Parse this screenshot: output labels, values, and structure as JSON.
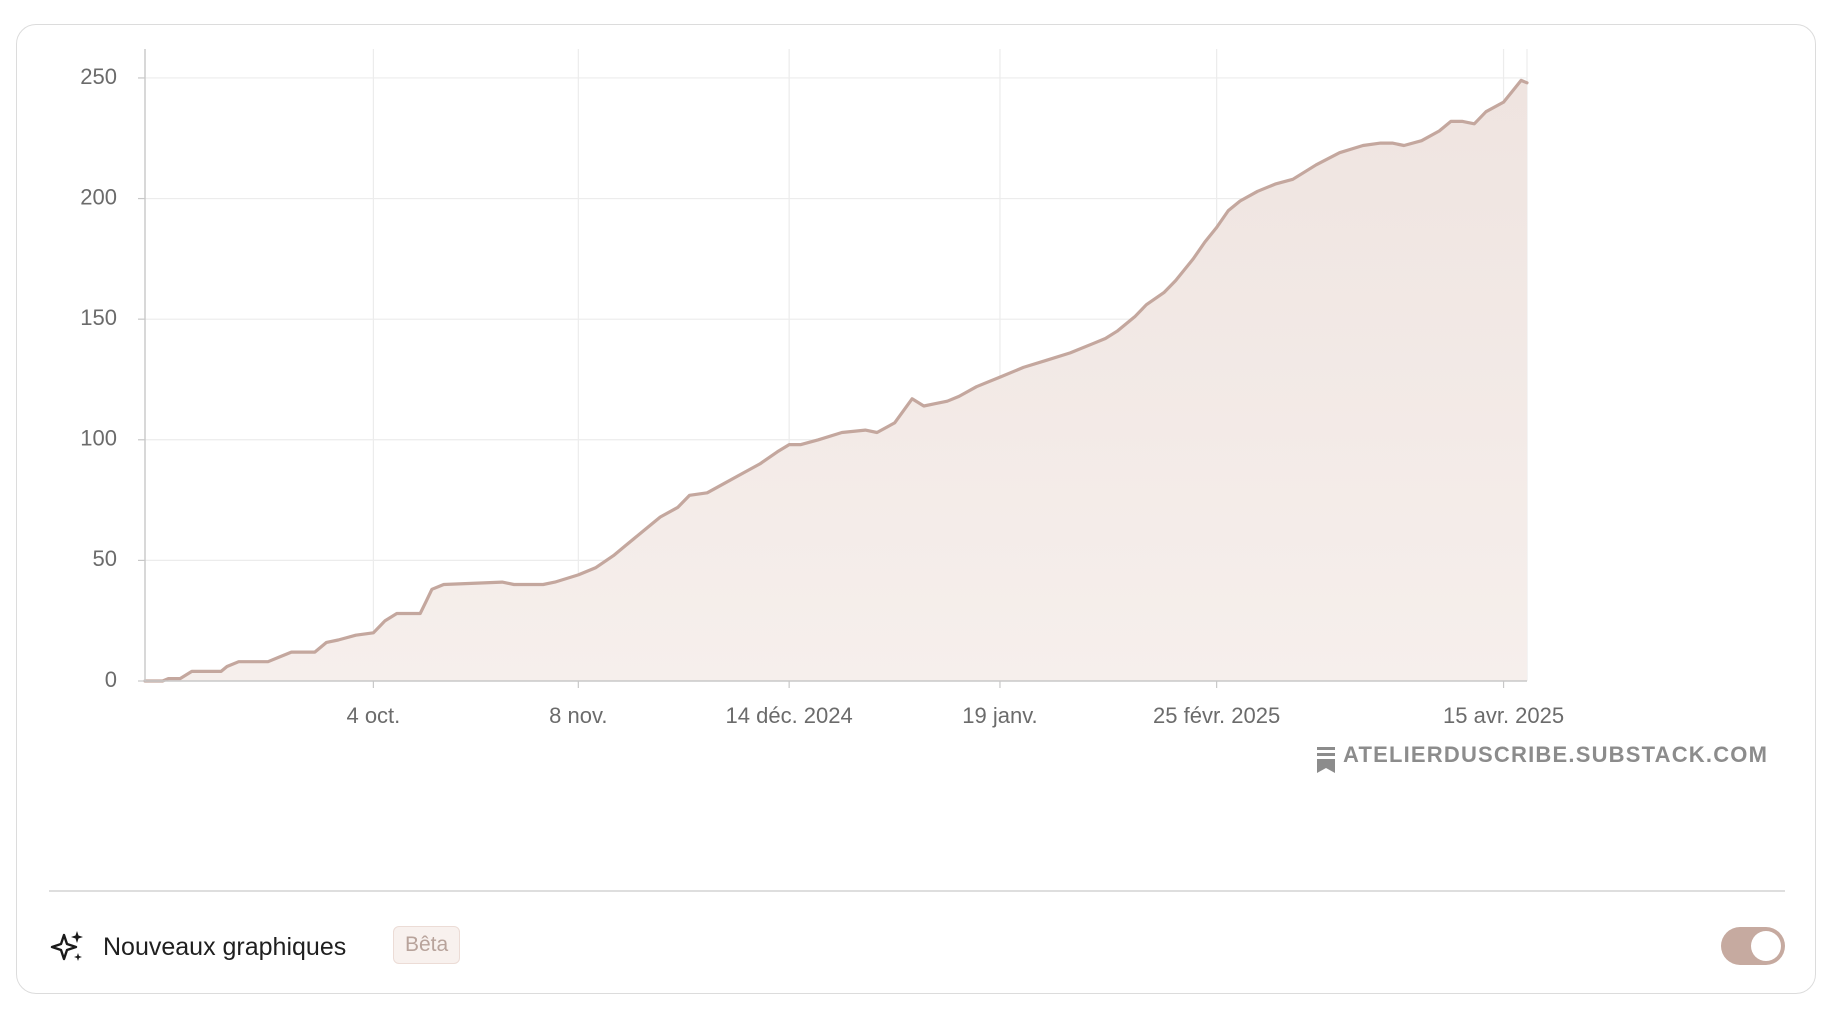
{
  "chart_data": {
    "type": "area",
    "title": "",
    "xlabel": "",
    "ylabel": "",
    "x_axis": {
      "start": "2024-08-26",
      "end": "2025-04-19",
      "ticks": [
        {
          "date": "2024-10-04",
          "label": "4 oct."
        },
        {
          "date": "2024-11-08",
          "label": "8 nov."
        },
        {
          "date": "2024-12-14",
          "label": "14 déc. 2024"
        },
        {
          "date": "2025-01-19",
          "label": "19 janv."
        },
        {
          "date": "2025-02-25",
          "label": "25 févr. 2025"
        },
        {
          "date": "2025-04-15",
          "label": "15 avr. 2025"
        }
      ]
    },
    "y_axis": {
      "min": 0,
      "max": 262,
      "ticks": [
        0,
        50,
        100,
        150,
        200,
        250
      ]
    },
    "grid": true,
    "line_color": "#c4a79e",
    "fill_color": "#f1e7e3",
    "points": [
      [
        "2024-08-26",
        0
      ],
      [
        "2024-08-29",
        0
      ],
      [
        "2024-08-30",
        1
      ],
      [
        "2024-09-01",
        1
      ],
      [
        "2024-09-03",
        4
      ],
      [
        "2024-09-06",
        4
      ],
      [
        "2024-09-08",
        4
      ],
      [
        "2024-09-09",
        6
      ],
      [
        "2024-09-11",
        8
      ],
      [
        "2024-09-14",
        8
      ],
      [
        "2024-09-16",
        8
      ],
      [
        "2024-09-18",
        10
      ],
      [
        "2024-09-20",
        12
      ],
      [
        "2024-09-24",
        12
      ],
      [
        "2024-09-26",
        16
      ],
      [
        "2024-09-28",
        17
      ],
      [
        "2024-10-01",
        19
      ],
      [
        "2024-10-04",
        20
      ],
      [
        "2024-10-06",
        25
      ],
      [
        "2024-10-08",
        28
      ],
      [
        "2024-10-12",
        28
      ],
      [
        "2024-10-13",
        33
      ],
      [
        "2024-10-14",
        38
      ],
      [
        "2024-10-16",
        40
      ],
      [
        "2024-10-26",
        41
      ],
      [
        "2024-10-28",
        40
      ],
      [
        "2024-11-02",
        40
      ],
      [
        "2024-11-04",
        41
      ],
      [
        "2024-11-08",
        44
      ],
      [
        "2024-11-11",
        47
      ],
      [
        "2024-11-14",
        52
      ],
      [
        "2024-11-16",
        56
      ],
      [
        "2024-11-19",
        62
      ],
      [
        "2024-11-22",
        68
      ],
      [
        "2024-11-25",
        72
      ],
      [
        "2024-11-27",
        77
      ],
      [
        "2024-11-30",
        78
      ],
      [
        "2024-12-03",
        82
      ],
      [
        "2024-12-06",
        86
      ],
      [
        "2024-12-09",
        90
      ],
      [
        "2024-12-12",
        95
      ],
      [
        "2024-12-14",
        98
      ],
      [
        "2024-12-16",
        98
      ],
      [
        "2024-12-19",
        100
      ],
      [
        "2024-12-23",
        103
      ],
      [
        "2024-12-27",
        104
      ],
      [
        "2024-12-29",
        103
      ],
      [
        "2025-01-01",
        107
      ],
      [
        "2025-01-04",
        117
      ],
      [
        "2025-01-06",
        114
      ],
      [
        "2025-01-08",
        115
      ],
      [
        "2025-01-10",
        116
      ],
      [
        "2025-01-12",
        118
      ],
      [
        "2025-01-15",
        122
      ],
      [
        "2025-01-19",
        126
      ],
      [
        "2025-01-23",
        130
      ],
      [
        "2025-01-27",
        133
      ],
      [
        "2025-01-31",
        136
      ],
      [
        "2025-02-04",
        140
      ],
      [
        "2025-02-06",
        142
      ],
      [
        "2025-02-08",
        145
      ],
      [
        "2025-02-11",
        151
      ],
      [
        "2025-02-13",
        156
      ],
      [
        "2025-02-16",
        161
      ],
      [
        "2025-02-18",
        166
      ],
      [
        "2025-02-21",
        175
      ],
      [
        "2025-02-23",
        182
      ],
      [
        "2025-02-25",
        188
      ],
      [
        "2025-02-27",
        195
      ],
      [
        "2025-03-01",
        199
      ],
      [
        "2025-03-04",
        203
      ],
      [
        "2025-03-07",
        206
      ],
      [
        "2025-03-10",
        208
      ],
      [
        "2025-03-14",
        214
      ],
      [
        "2025-03-18",
        219
      ],
      [
        "2025-03-22",
        222
      ],
      [
        "2025-03-25",
        223
      ],
      [
        "2025-03-27",
        223
      ],
      [
        "2025-03-29",
        222
      ],
      [
        "2025-04-01",
        224
      ],
      [
        "2025-04-04",
        228
      ],
      [
        "2025-04-06",
        232
      ],
      [
        "2025-04-08",
        232
      ],
      [
        "2025-04-10",
        231
      ],
      [
        "2025-04-12",
        236
      ],
      [
        "2025-04-15",
        240
      ],
      [
        "2025-04-17",
        246
      ],
      [
        "2025-04-18",
        249
      ],
      [
        "2025-04-19",
        248
      ]
    ]
  },
  "watermark": {
    "text": "ATELIERDUSCRIBE.SUBSTACK.COM",
    "icon": "substack-icon"
  },
  "footer": {
    "title": "Nouveaux graphiques",
    "badge": "Bêta",
    "toggle_on": true
  }
}
